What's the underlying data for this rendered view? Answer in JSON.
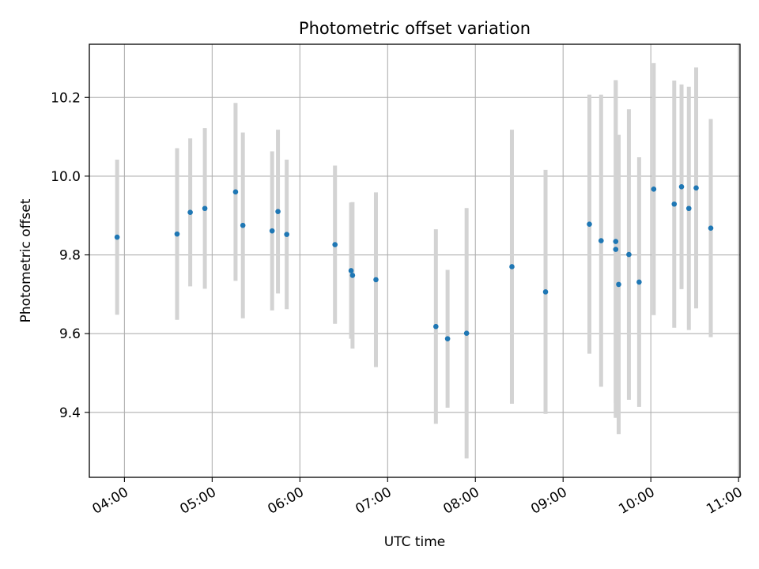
{
  "chart_data": {
    "type": "scatter",
    "title": "Photometric offset variation",
    "xlabel": "UTC time",
    "ylabel": "Photometric offset",
    "x_ticks": [
      "04:00",
      "05:00",
      "06:00",
      "07:00",
      "08:00",
      "09:00",
      "10:00",
      "11:00"
    ],
    "y_ticks": [
      "9.4",
      "9.6",
      "9.8",
      "10.0",
      "10.2"
    ],
    "xlim": [
      "03:36",
      "11:01"
    ],
    "ylim": [
      9.235,
      10.335
    ],
    "grid": true,
    "colors": {
      "point": "#1f77b4",
      "errorbar": "#d3d3d3",
      "grid": "#b0b0b0"
    },
    "points": [
      {
        "t": "03:55",
        "y": 9.845,
        "err": 0.197
      },
      {
        "t": "04:36",
        "y": 9.853,
        "err": 0.218
      },
      {
        "t": "04:45",
        "y": 9.908,
        "err": 0.188
      },
      {
        "t": "04:55",
        "y": 9.918,
        "err": 0.204
      },
      {
        "t": "05:16",
        "y": 9.96,
        "err": 0.226
      },
      {
        "t": "05:21",
        "y": 9.875,
        "err": 0.236
      },
      {
        "t": "05:41",
        "y": 9.861,
        "err": 0.202
      },
      {
        "t": "05:45",
        "y": 9.91,
        "err": 0.208
      },
      {
        "t": "05:51",
        "y": 9.852,
        "err": 0.19
      },
      {
        "t": "06:24",
        "y": 9.826,
        "err": 0.201
      },
      {
        "t": "06:35",
        "y": 9.76,
        "err": 0.173
      },
      {
        "t": "06:36",
        "y": 9.748,
        "err": 0.186
      },
      {
        "t": "06:52",
        "y": 9.737,
        "err": 0.222
      },
      {
        "t": "07:33",
        "y": 9.618,
        "err": 0.247
      },
      {
        "t": "07:41",
        "y": 9.587,
        "err": 0.175
      },
      {
        "t": "07:54",
        "y": 9.601,
        "err": 0.318
      },
      {
        "t": "08:25",
        "y": 9.77,
        "err": 0.348
      },
      {
        "t": "08:48",
        "y": 9.706,
        "err": 0.31
      },
      {
        "t": "09:18",
        "y": 9.878,
        "err": 0.329
      },
      {
        "t": "09:26",
        "y": 9.836,
        "err": 0.371
      },
      {
        "t": "09:36",
        "y": 9.834,
        "err": 0.41
      },
      {
        "t": "09:36",
        "y": 9.814,
        "err": 0.428
      },
      {
        "t": "09:38",
        "y": 9.725,
        "err": 0.38
      },
      {
        "t": "09:45",
        "y": 9.801,
        "err": 0.369
      },
      {
        "t": "09:52",
        "y": 9.731,
        "err": 0.317
      },
      {
        "t": "10:02",
        "y": 9.967,
        "err": 0.32
      },
      {
        "t": "10:16",
        "y": 9.929,
        "err": 0.314
      },
      {
        "t": "10:21",
        "y": 9.973,
        "err": 0.26
      },
      {
        "t": "10:26",
        "y": 9.918,
        "err": 0.309
      },
      {
        "t": "10:31",
        "y": 9.97,
        "err": 0.306
      },
      {
        "t": "10:41",
        "y": 9.868,
        "err": 0.277
      }
    ]
  }
}
